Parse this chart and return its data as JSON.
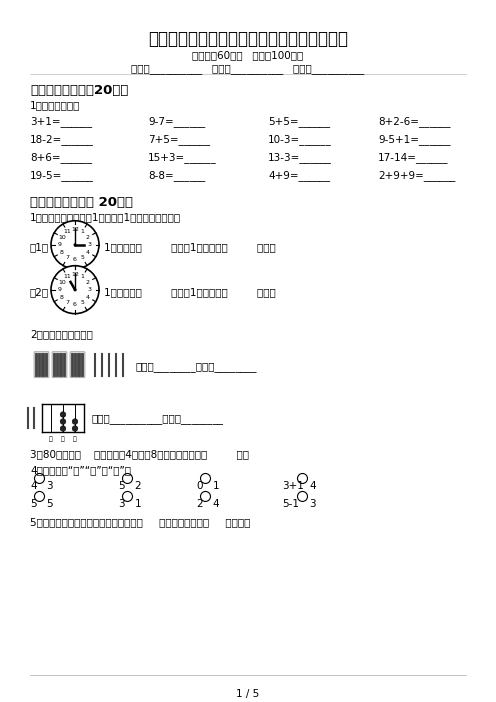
{
  "title": "苏教版一年级数学上册期中考试题及参考答案",
  "subtitle": "（时间：60分钟   分数：100分）",
  "info_line": "班级：__________   姓名：__________   分数：__________",
  "section1_title": "一、计算小能手（20分）",
  "section1_sub": "1、直接写得数。",
  "math_rows": [
    [
      "3+1=______",
      "9-7=______",
      "5+5=______",
      "8+2-6=______"
    ],
    [
      "18-2=______",
      "7+5=______",
      "10-3=______",
      "9-5+1=______"
    ],
    [
      "8+6=______",
      "15+3=______",
      "13-3=______",
      "17-14=______"
    ],
    [
      "19-5=______",
      "8-8=______",
      "4+9=______",
      "2+9+9=______"
    ]
  ],
  "section2_title": "二、填空题。（共 20分）",
  "clock_intro": "1、下面钟面上的时间1小时前和1小时后各是几时？",
  "clock1_label": "（1）",
  "clock1_text": "1小时前是（         ）时，1小时后是（         ）时。",
  "clock1_hour": 3,
  "clock1_minute": 0,
  "clock2_label": "（2）",
  "clock2_text": "1小时前是（         ）时，1小时后是（         ）时。",
  "clock2_hour": 11,
  "clock2_minute": 0,
  "read_write_title": "2、我会读，我会写。",
  "bundles_text": "读作：________写作：________",
  "abacus_text": "读作：__________写作：________",
  "q3_text": "3、80里面有（    ）个十；由4个十和8个一组成的数是（         ）。",
  "q4_text": "4、在里填上“＞”“＜”或“＝”。",
  "q4_row1": [
    "4",
    "3",
    "5",
    "2",
    "0",
    "1",
    "3+1",
    "4"
  ],
  "q4_row2": [
    "5",
    "5",
    "3",
    "1",
    "2",
    "4",
    "5-1",
    "3"
  ],
  "q5_text": "5、计数器上，从右边数起，第一位是（     ）位，第二位是（     ）位，第",
  "page_footer": "1 / 5",
  "bg_color": "#ffffff",
  "text_color": "#000000"
}
